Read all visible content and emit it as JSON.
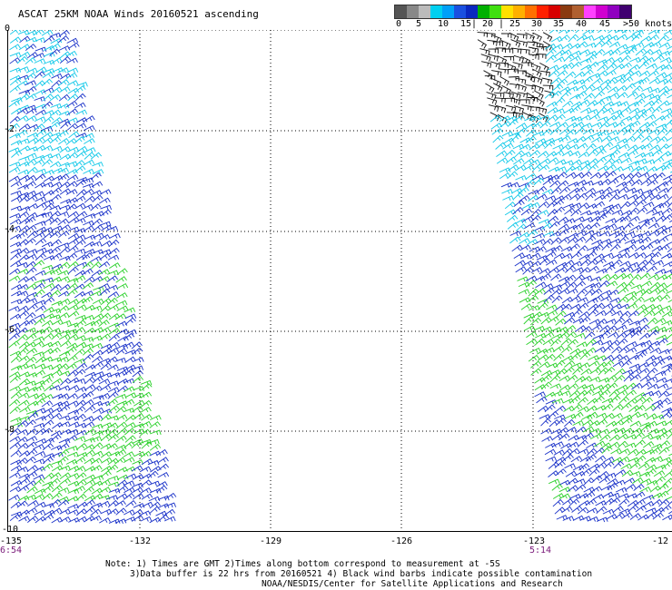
{
  "title": "ASCAT 25KM NOAA Winds 20160521 ascending",
  "legend": {
    "labels": [
      "0",
      "5",
      "10",
      "15|",
      "20 |",
      "25",
      "30",
      "35",
      "40",
      "45",
      ">50 knots"
    ],
    "colors": [
      "#555555",
      "#888888",
      "#bbbbbb",
      "#00d0f0",
      "#00a0f8",
      "#1a50e0",
      "#0a28c0",
      "#00b000",
      "#40e010",
      "#ffe000",
      "#ffb000",
      "#ff7000",
      "#ff2000",
      "#d80000",
      "#8a3a10",
      "#b06030",
      "#ff40ff",
      "#d000d0",
      "#9000c0",
      "#400070"
    ]
  },
  "axes": {
    "y_ticks": [
      "0",
      "-2",
      "-4",
      "-6",
      "-8",
      "-10"
    ],
    "x_ticks": [
      "-135",
      "-132",
      "-129",
      "-126",
      "-123",
      "-12"
    ]
  },
  "pass_times": {
    "left": "6:54",
    "right": "5:14"
  },
  "notes": {
    "line1": "Note: 1) Times are GMT 2)Times along bottom correspond to measurement at -5S",
    "line2": "3)Data buffer is 22 hrs from 20160521 4) Black wind barbs indicate possible contamination",
    "line3": "NOAA/NESDIS/Center for Satellite Applications and Research"
  },
  "swaths": [
    {
      "side": "left",
      "zones": [
        "cyan",
        "blue",
        "green",
        "blue"
      ]
    },
    {
      "side": "right",
      "zones": [
        "black",
        "cyan",
        "blue",
        "green",
        "blue"
      ]
    }
  ]
}
